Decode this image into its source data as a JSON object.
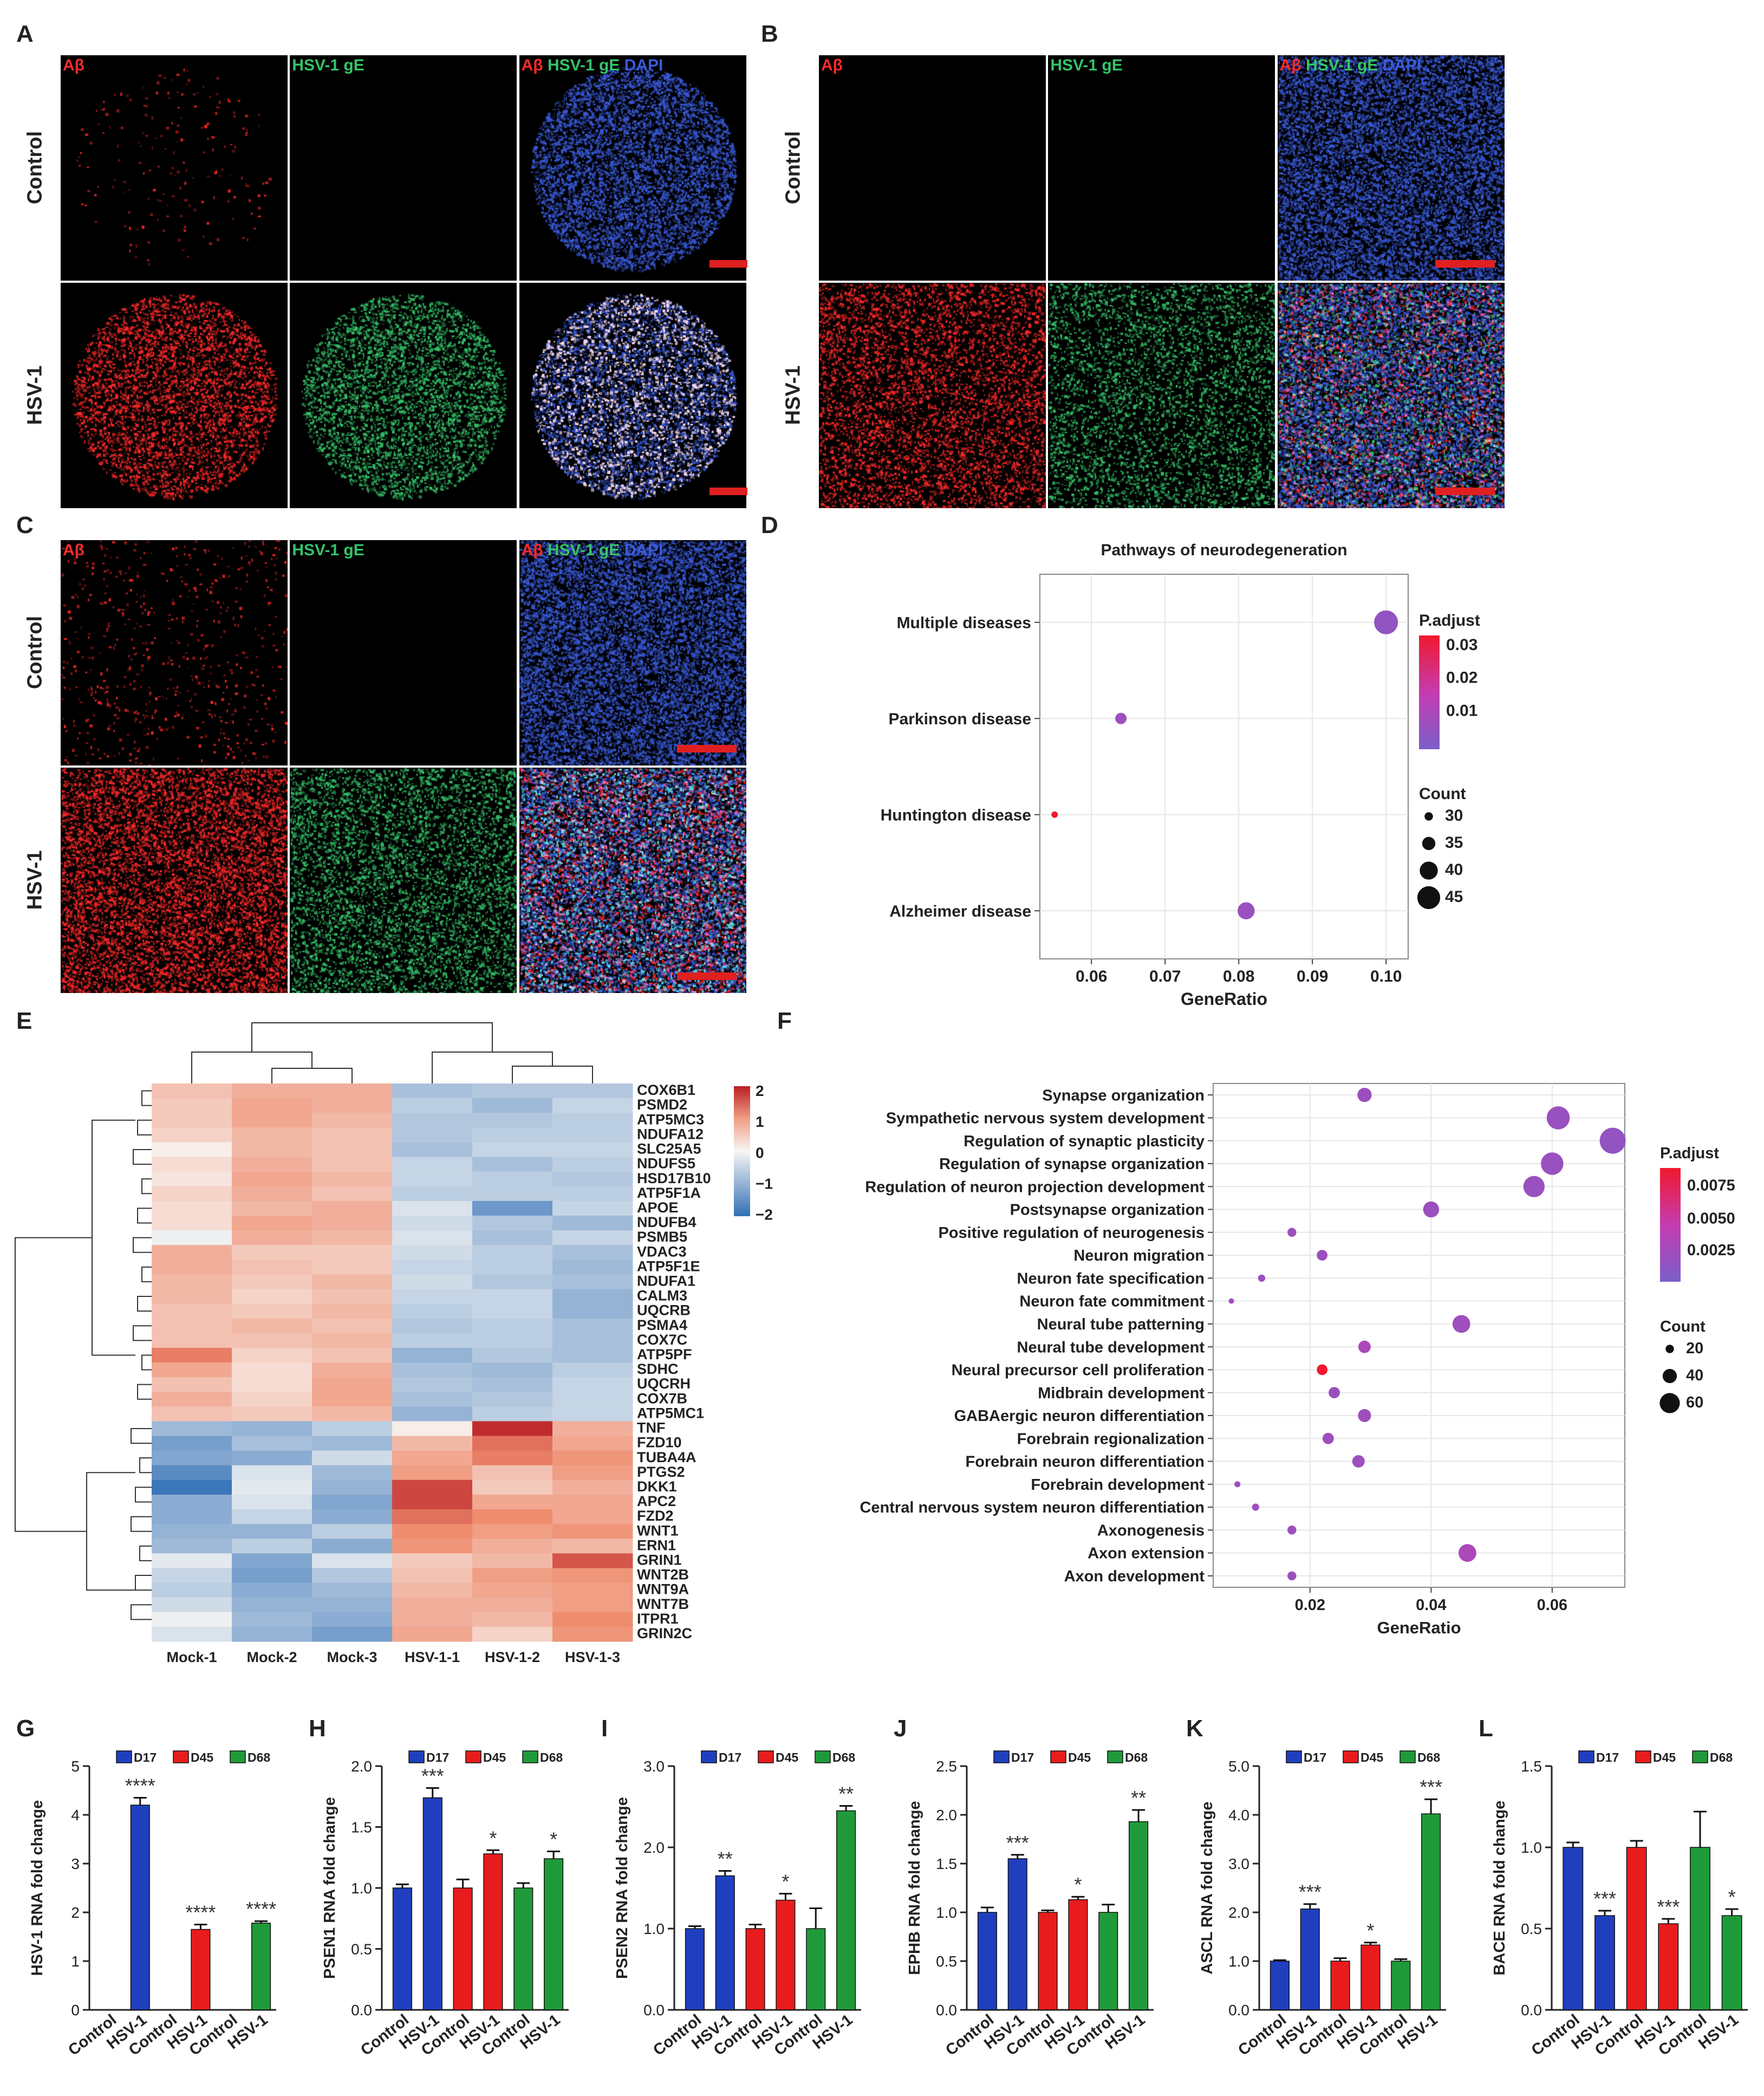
{
  "panels": {
    "A": "A",
    "B": "B",
    "C": "C",
    "D": "D",
    "E": "E",
    "F": "F",
    "G": "G",
    "H": "H",
    "I": "I",
    "J": "J",
    "K": "K",
    "L": "L"
  },
  "micro": {
    "channels": [
      "Aβ",
      "HSV-1 gE",
      "Aβ",
      "HSV-1 gE",
      "DAPI"
    ],
    "rows": [
      "Control",
      "HSV-1"
    ],
    "colors": {
      "red": "#ff2a2a",
      "green": "#35c36a",
      "blue": "#3a5bd9"
    }
  },
  "chart_data": [
    {
      "id": "D",
      "type": "scatter",
      "title": "Pathways of neurodegeneration",
      "xlabel": "GeneRatio",
      "xticks": [
        "0.06",
        "0.07",
        "0.08",
        "0.09",
        "0.10"
      ],
      "xlim": [
        0.053,
        0.103
      ],
      "categories": [
        "Multiple diseases",
        "Parkinson disease",
        "Huntington disease",
        "Alzheimer disease"
      ],
      "x": [
        0.1,
        0.064,
        0.055,
        0.081
      ],
      "count": [
        46,
        33,
        28,
        39
      ],
      "padj": [
        0.005,
        0.008,
        0.033,
        0.007
      ],
      "color_legend": {
        "title": "P.adjust",
        "ticks": [
          "0.03",
          "0.02",
          "0.01"
        ]
      },
      "size_legend": {
        "title": "Count",
        "ticks": [
          "30",
          "35",
          "40",
          "45"
        ]
      }
    },
    {
      "id": "E",
      "type": "heatmap",
      "columns": [
        "Mock-1",
        "Mock-2",
        "Mock-3",
        "HSV-1-1",
        "HSV-1-2",
        "HSV-1-3"
      ],
      "rows": [
        "COX6B1",
        "PSMD2",
        "ATP5MC3",
        "NDUFA12",
        "SLC25A5",
        "NDUFS5",
        "HSD17B10",
        "ATP5F1A",
        "APOE",
        "NDUFB4",
        "PSMB5",
        "VDAC3",
        "ATP5F1E",
        "NDUFA1",
        "CALM3",
        "UQCRB",
        "PSMA4",
        "COX7C",
        "ATP5PF",
        "SDHC",
        "UQCRH",
        "COX7B",
        "ATP5MC1",
        "TNF",
        "FZD10",
        "TUBA4A",
        "PTGS2",
        "DKK1",
        "APC2",
        "FZD2",
        "WNT1",
        "ERN1",
        "GRIN1",
        "WNT2B",
        "WNT9A",
        "WNT7B",
        "ITPR1",
        "GRIN2C"
      ],
      "values": [
        [
          0.6,
          0.8,
          0.8,
          -0.8,
          -0.7,
          -0.7
        ],
        [
          0.5,
          0.9,
          0.8,
          -0.6,
          -0.9,
          -0.5
        ],
        [
          0.5,
          0.9,
          0.7,
          -0.7,
          -0.7,
          -0.6
        ],
        [
          0.4,
          0.7,
          0.6,
          -0.7,
          -0.6,
          -0.6
        ],
        [
          0.1,
          0.7,
          0.6,
          -0.8,
          -0.5,
          -0.5
        ],
        [
          0.3,
          0.8,
          0.6,
          -0.5,
          -0.8,
          -0.6
        ],
        [
          0.2,
          0.9,
          0.7,
          -0.5,
          -0.6,
          -0.7
        ],
        [
          0.4,
          0.8,
          0.6,
          -0.6,
          -0.6,
          -0.6
        ],
        [
          0.3,
          0.7,
          0.8,
          -0.3,
          -1.4,
          -0.5
        ],
        [
          0.3,
          0.9,
          0.8,
          -0.4,
          -0.7,
          -0.9
        ],
        [
          -0.1,
          0.8,
          0.7,
          -0.3,
          -0.8,
          -0.5
        ],
        [
          0.8,
          0.5,
          0.5,
          -0.4,
          -0.6,
          -0.8
        ],
        [
          0.8,
          0.6,
          0.5,
          -0.5,
          -0.6,
          -0.9
        ],
        [
          0.7,
          0.5,
          0.7,
          -0.4,
          -0.7,
          -0.8
        ],
        [
          0.7,
          0.4,
          0.6,
          -0.5,
          -0.5,
          -1.0
        ],
        [
          0.6,
          0.5,
          0.7,
          -0.6,
          -0.5,
          -1.0
        ],
        [
          0.6,
          0.7,
          0.6,
          -0.7,
          -0.6,
          -0.8
        ],
        [
          0.6,
          0.6,
          0.7,
          -0.6,
          -0.6,
          -0.8
        ],
        [
          1.3,
          0.4,
          0.6,
          -1.0,
          -0.7,
          -0.8
        ],
        [
          0.9,
          0.3,
          0.8,
          -0.8,
          -0.9,
          -0.6
        ],
        [
          0.6,
          0.3,
          0.9,
          -0.7,
          -0.8,
          -0.5
        ],
        [
          0.8,
          0.4,
          0.9,
          -0.8,
          -0.7,
          -0.5
        ],
        [
          0.6,
          0.5,
          0.7,
          -1.0,
          -0.6,
          -0.5
        ],
        [
          -0.9,
          -1.0,
          -0.6,
          0.1,
          1.9,
          0.8
        ],
        [
          -1.3,
          -0.8,
          -0.9,
          0.7,
          1.4,
          0.9
        ],
        [
          -1.2,
          -1.1,
          -0.4,
          0.9,
          1.3,
          1.1
        ],
        [
          -1.6,
          -0.3,
          -0.9,
          1.0,
          0.6,
          1.0
        ],
        [
          -1.9,
          -0.2,
          -1.0,
          1.7,
          0.5,
          0.8
        ],
        [
          -1.1,
          -0.3,
          -1.2,
          1.7,
          0.9,
          0.9
        ],
        [
          -1.1,
          -0.5,
          -1.1,
          1.4,
          1.2,
          0.9
        ],
        [
          -1.0,
          -1.0,
          -0.6,
          1.2,
          1.0,
          1.1
        ],
        [
          -0.9,
          -0.6,
          -1.1,
          1.1,
          0.8,
          0.7
        ],
        [
          -0.2,
          -1.2,
          -0.3,
          0.5,
          0.7,
          1.6
        ],
        [
          -0.5,
          -1.3,
          -0.7,
          0.6,
          1.0,
          1.1
        ],
        [
          -0.6,
          -1.1,
          -0.9,
          0.7,
          0.9,
          1.0
        ],
        [
          -0.4,
          -1.0,
          -1.0,
          0.8,
          0.8,
          1.0
        ],
        [
          -0.1,
          -0.9,
          -1.1,
          0.8,
          0.7,
          1.2
        ],
        [
          -0.3,
          -1.0,
          -1.3,
          0.9,
          0.4,
          1.1
        ]
      ],
      "legend_ticks": [
        "2",
        "1",
        "0",
        "−1",
        "−2"
      ]
    },
    {
      "id": "F",
      "type": "scatter",
      "xlabel": "GeneRatio",
      "xticks": [
        "0.02",
        "0.04",
        "0.06"
      ],
      "xlim": [
        0.004,
        0.072
      ],
      "categories": [
        "Synapse organization",
        "Sympathetic nervous system development",
        "Regulation of synaptic plasticity",
        "Regulation of synapse organization",
        "Regulation of neuron projection development",
        "Postsynapse organization",
        "Positive regulation of neurogenesis",
        "Neuron migration",
        "Neuron fate specification",
        "Neuron fate commitment",
        "Neural tube patterning",
        "Neural tube development",
        "Neural precursor cell proliferation",
        "Midbrain development",
        "GABAergic neuron differentiation",
        "Forebrain regionalization",
        "Forebrain neuron differentiation",
        "Forebrain development",
        "Central nervous system neuron differentiation",
        "Axonogenesis",
        "Axon extension",
        "Axon development"
      ],
      "x": [
        0.029,
        0.061,
        0.07,
        0.06,
        0.057,
        0.04,
        0.017,
        0.022,
        0.012,
        0.007,
        0.045,
        0.029,
        0.022,
        0.024,
        0.029,
        0.023,
        0.028,
        0.008,
        0.011,
        0.017,
        0.046,
        0.017
      ],
      "count": [
        40,
        70,
        80,
        68,
        64,
        46,
        22,
        28,
        16,
        10,
        52,
        34,
        28,
        30,
        36,
        30,
        34,
        12,
        16,
        22,
        52,
        22
      ],
      "padj": [
        0.002,
        0.0018,
        0.0015,
        0.0018,
        0.0018,
        0.002,
        0.0022,
        0.002,
        0.002,
        0.0022,
        0.0022,
        0.003,
        0.009,
        0.002,
        0.0022,
        0.0022,
        0.0022,
        0.002,
        0.0022,
        0.002,
        0.003,
        0.002
      ],
      "color_legend": {
        "title": "P.adjust",
        "ticks": [
          "0.0075",
          "0.0050",
          "0.0025"
        ]
      },
      "size_legend": {
        "title": "Count",
        "ticks": [
          "20",
          "40",
          "60"
        ]
      }
    },
    {
      "id": "G",
      "type": "bar",
      "ylabel": "HSV-1 RNA fold change",
      "yticks": [
        "0",
        "1",
        "2",
        "3",
        "4",
        "5"
      ],
      "ylim": [
        0,
        5
      ],
      "legend": [
        "D17",
        "D45",
        "D68"
      ],
      "categories": [
        "Control",
        "HSV-1",
        "Control",
        "HSV-1",
        "Control",
        "HSV-1"
      ],
      "values": [
        0,
        4.2,
        0,
        1.65,
        0,
        1.78
      ],
      "errors": [
        0,
        0.15,
        0,
        0.1,
        0,
        0.04
      ],
      "sig": [
        "",
        "****",
        "",
        "****",
        "",
        "****"
      ]
    },
    {
      "id": "H",
      "type": "bar",
      "ylabel": "PSEN1 RNA fold change",
      "yticks": [
        "0.0",
        "0.5",
        "1.0",
        "1.5",
        "2.0"
      ],
      "ylim": [
        0,
        2
      ],
      "legend": [
        "D17",
        "D45",
        "D68"
      ],
      "categories": [
        "Control",
        "HSV-1",
        "Control",
        "HSV-1",
        "Control",
        "HSV-1"
      ],
      "values": [
        1.0,
        1.74,
        1.0,
        1.28,
        1.0,
        1.24
      ],
      "errors": [
        0.03,
        0.08,
        0.07,
        0.03,
        0.04,
        0.06
      ],
      "sig": [
        "",
        "***",
        "",
        "*",
        "",
        "*"
      ]
    },
    {
      "id": "I",
      "type": "bar",
      "ylabel": "PSEN2 RNA fold change",
      "yticks": [
        "0.0",
        "1.0",
        "2.0",
        "3.0"
      ],
      "ylim": [
        0,
        3
      ],
      "legend": [
        "D17",
        "D45",
        "D68"
      ],
      "categories": [
        "Control",
        "HSV-1",
        "Control",
        "HSV-1",
        "Control",
        "HSV-1"
      ],
      "values": [
        1.0,
        1.65,
        1.0,
        1.35,
        1.0,
        2.45
      ],
      "errors": [
        0.03,
        0.06,
        0.05,
        0.08,
        0.25,
        0.06
      ],
      "sig": [
        "",
        "**",
        "",
        "*",
        "",
        "**"
      ]
    },
    {
      "id": "J",
      "type": "bar",
      "ylabel": "EPHB RNA fold change",
      "yticks": [
        "0.0",
        "0.5",
        "1.0",
        "1.5",
        "2.0",
        "2.5"
      ],
      "ylim": [
        0,
        2.5
      ],
      "legend": [
        "D17",
        "D45",
        "D68"
      ],
      "categories": [
        "Control",
        "HSV-1",
        "Control",
        "HSV-1",
        "Control",
        "HSV-1"
      ],
      "values": [
        1.0,
        1.55,
        1.0,
        1.13,
        1.0,
        1.93
      ],
      "errors": [
        0.05,
        0.04,
        0.02,
        0.03,
        0.08,
        0.12
      ],
      "sig": [
        "",
        "***",
        "",
        "*",
        "",
        "**"
      ]
    },
    {
      "id": "K",
      "type": "bar",
      "ylabel": "ASCL RNA fold change",
      "yticks": [
        "0.0",
        "1.0",
        "2.0",
        "3.0",
        "4.0",
        "5.0"
      ],
      "ylim": [
        0,
        5
      ],
      "legend": [
        "D17",
        "D45",
        "D68"
      ],
      "categories": [
        "Control",
        "HSV-1",
        "Control",
        "HSV-1",
        "Control",
        "HSV-1"
      ],
      "values": [
        1.0,
        2.07,
        1.0,
        1.33,
        1.0,
        4.02
      ],
      "errors": [
        0.02,
        0.1,
        0.06,
        0.05,
        0.04,
        0.3
      ],
      "sig": [
        "",
        "***",
        "",
        "*",
        "",
        "***"
      ]
    },
    {
      "id": "L",
      "type": "bar",
      "ylabel": "BACE RNA fold change",
      "yticks": [
        "0.0",
        "0.5",
        "1.0",
        "1.5"
      ],
      "ylim": [
        0,
        1.5
      ],
      "legend": [
        "D17",
        "D45",
        "D68"
      ],
      "categories": [
        "Control",
        "HSV-1",
        "Control",
        "HSV-1",
        "Control",
        "HSV-1"
      ],
      "values": [
        1.0,
        0.58,
        1.0,
        0.53,
        1.0,
        0.58
      ],
      "errors": [
        0.03,
        0.03,
        0.04,
        0.03,
        0.22,
        0.04
      ],
      "sig": [
        "",
        "***",
        "",
        "***",
        "",
        "*"
      ]
    }
  ],
  "colors": {
    "d17": "#1f3fbf",
    "d45": "#e81c1c",
    "d68": "#1f9a3a"
  }
}
